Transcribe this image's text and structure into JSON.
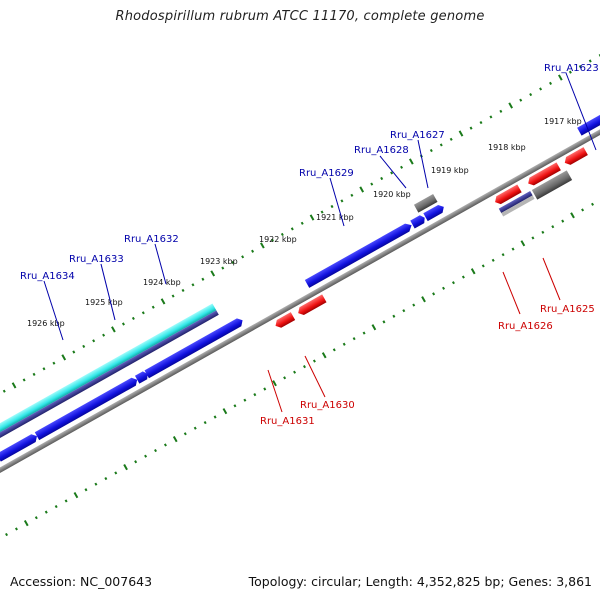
{
  "title": "Rhodospirillum rubrum ATCC 11170, complete genome",
  "footer": {
    "accession": "Accession: NC_007643",
    "summary": "Topology: circular; Length: 4,352,825 bp; Genes: 3,861"
  },
  "colors": {
    "forward_gene": "#1010dd",
    "reverse_gene": "#ee1111",
    "other_gene": "#6a6a6a",
    "rna_gene": "#33e8e8",
    "backbone": "#888888",
    "tick": "#1a7a1a",
    "label_forward": "#0000aa",
    "label_reverse": "#cc0000"
  },
  "kbp_ticks": [
    "1917 kbp",
    "1918 kbp",
    "1919 kbp",
    "1920 kbp",
    "1921 kbp",
    "1922 kbp",
    "1923 kbp",
    "1924 kbp",
    "1925 kbp",
    "1926 kbp"
  ],
  "gene_labels": [
    {
      "text": "Rru_A1623",
      "strand": "forward"
    },
    {
      "text": "Rru_A1627",
      "strand": "forward"
    },
    {
      "text": "Rru_A1628",
      "strand": "forward"
    },
    {
      "text": "Rru_A1629",
      "strand": "forward"
    },
    {
      "text": "Rru_A1632",
      "strand": "forward"
    },
    {
      "text": "Rru_A1633",
      "strand": "forward"
    },
    {
      "text": "Rru_A1634",
      "strand": "forward"
    },
    {
      "text": "Rru_A1625",
      "strand": "reverse"
    },
    {
      "text": "Rru_A1626",
      "strand": "reverse"
    },
    {
      "text": "Rru_A1630",
      "strand": "reverse"
    },
    {
      "text": "Rru_A1631",
      "strand": "reverse"
    }
  ]
}
